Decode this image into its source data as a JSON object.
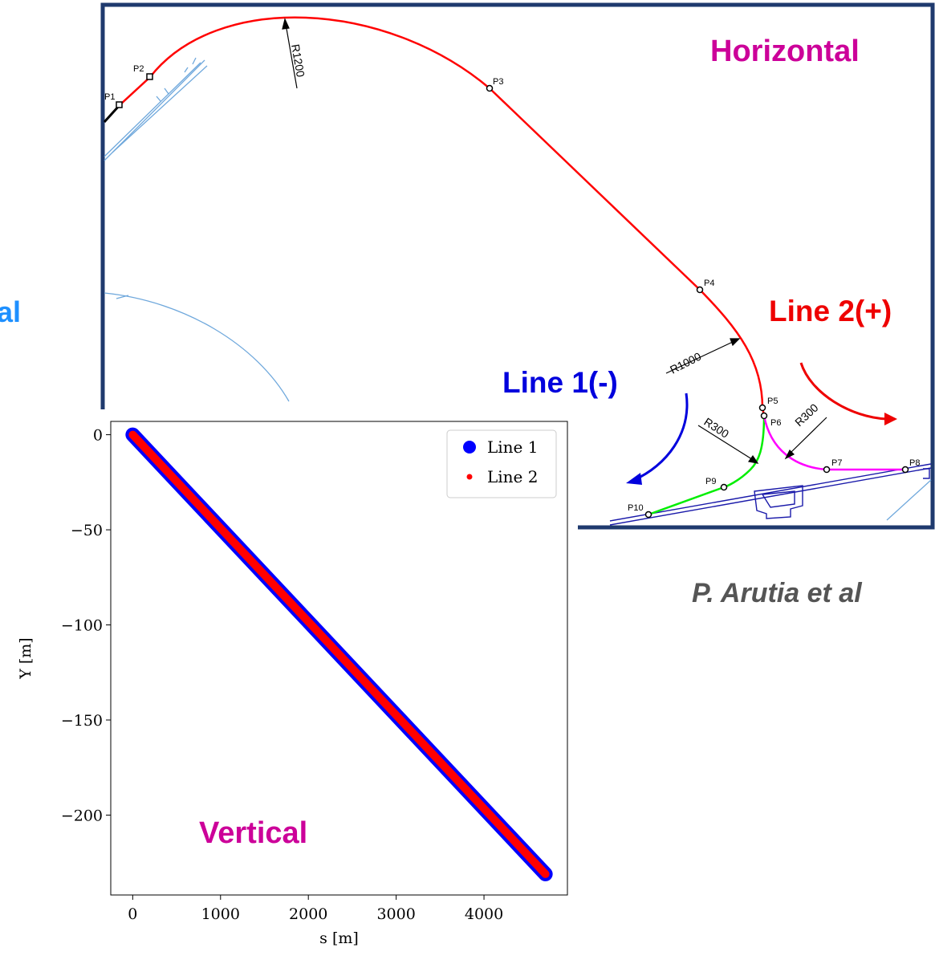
{
  "horizontal": {
    "title": "Horizontal",
    "line1_label": "Line 1(-)",
    "line2_label": "Line 2(+)",
    "edge_label": "al",
    "points": [
      "P1",
      "P2",
      "P3",
      "P4",
      "P5",
      "P6",
      "P7",
      "P8",
      "P9",
      "P10"
    ],
    "radii": [
      "R1200",
      "R1000",
      "R300",
      "R300"
    ]
  },
  "credit": "P. Arutia et al",
  "colors": {
    "frame": "#1f3a6e",
    "main_route": "#ff0000",
    "line1_branch": "#00ee00",
    "line2_branch": "#ff00ff",
    "line1_arrow": "#0000dd",
    "line2_arrow": "#ee0000",
    "title": "#cc0099",
    "infrastructure": "#6fa8dc"
  },
  "chart_data": {
    "type": "scatter",
    "title": "Vertical",
    "xlabel": "s [m]",
    "ylabel": "Y [m]",
    "xlim": [
      -250,
      4950
    ],
    "ylim": [
      -242,
      7
    ],
    "xticks": [
      0,
      1000,
      2000,
      3000,
      4000
    ],
    "yticks": [
      0,
      -50,
      -100,
      -150,
      -200
    ],
    "xtick_labels": [
      "0",
      "1000",
      "2000",
      "3000",
      "4000"
    ],
    "ytick_labels": [
      "0",
      "−50",
      "−100",
      "−150",
      "−200"
    ],
    "legend_position": "top-right",
    "series": [
      {
        "name": "Line 1",
        "color": "#0000ff",
        "points": [
          [
            0,
            0
          ],
          [
            4700,
            -231
          ]
        ]
      },
      {
        "name": "Line 2",
        "color": "#ff0000",
        "points": [
          [
            0,
            0
          ],
          [
            4700,
            -231
          ]
        ]
      }
    ]
  }
}
